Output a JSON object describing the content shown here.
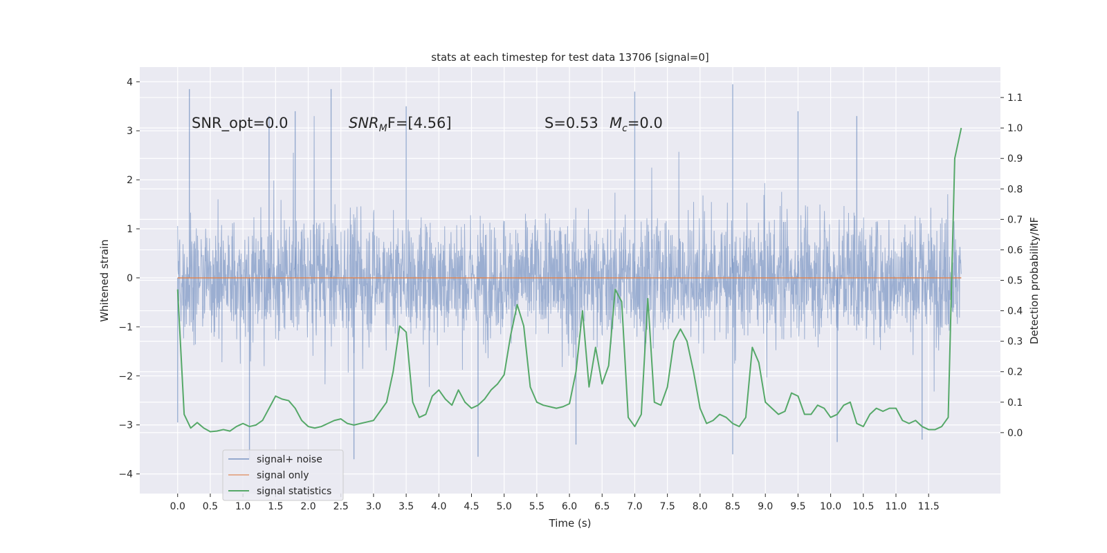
{
  "chart_data": {
    "type": "line",
    "title": "stats at each timestep for test data 13706 [signal=0]",
    "xlabel": "Time (s)",
    "ylabel": "Whitened strain",
    "ylabel_right": "Detection probability/MF",
    "xlim": [
      -0.58,
      12.6
    ],
    "ylim": [
      -4.4,
      4.3
    ],
    "ylim_right": [
      -0.2,
      1.2
    ],
    "x_ticks": [
      0.0,
      0.5,
      1.0,
      1.5,
      2.0,
      2.5,
      3.0,
      3.5,
      4.0,
      4.5,
      5.0,
      5.5,
      6.0,
      6.5,
      7.0,
      7.5,
      8.0,
      8.5,
      9.0,
      9.5,
      10.0,
      10.5,
      11.0,
      11.5
    ],
    "x_tick_labels": [
      "0.0",
      "0.5",
      "1.0",
      "1.5",
      "2.0",
      "2.5",
      "3.0",
      "3.5",
      "4.0",
      "4.5",
      "5.0",
      "5.5",
      "6.0",
      "6.5",
      "7.0",
      "7.5",
      "8.0",
      "8.5",
      "9.0",
      "9.5",
      "10.0",
      "10.5",
      "11.0",
      "11.5"
    ],
    "y_ticks": [
      -4,
      -3,
      -2,
      -1,
      0,
      1,
      2,
      3,
      4
    ],
    "y_tick_labels": [
      "−4",
      "−3",
      "−2",
      "−1",
      "0",
      "1",
      "2",
      "3",
      "4"
    ],
    "y_ticks_right": [
      0.0,
      0.1,
      0.2,
      0.3,
      0.4,
      0.5,
      0.6,
      0.7,
      0.8,
      0.9,
      1.0,
      1.1
    ],
    "y_tick_labels_right": [
      "0.0",
      "0.1",
      "0.2",
      "0.3",
      "0.4",
      "0.5",
      "0.6",
      "0.7",
      "0.8",
      "0.9",
      "1.0",
      "1.1"
    ],
    "grid": true,
    "legend_position": "lower-left",
    "colors": {
      "noise": "#4c72b0",
      "signal": "#dd8452",
      "stats": "#55a868",
      "panel": "#eaeaf2"
    },
    "annotations": [
      {
        "text": "SNR_opt=0.0",
        "x": 0.2,
        "y": 3.1
      },
      {
        "text": "SNR",
        "sub": "M",
        "suffix": "F=[4.56]",
        "italic_prefix": "SNR",
        "x": 2.6,
        "y": 3.1
      },
      {
        "text": "S=0.53",
        "x": 5.6,
        "y": 3.1
      },
      {
        "text": "M",
        "sub": "c",
        "suffix": "=0.0",
        "x": 6.6,
        "y": 3.1
      }
    ],
    "series": [
      {
        "name": "signal+ noise",
        "axis": "left",
        "style": "dense-noise",
        "x_range": [
          0.0,
          12.0
        ],
        "envelope_typical": [
          -1.8,
          1.8
        ],
        "peaks": [
          {
            "x": 0.18,
            "y": 3.85
          },
          {
            "x": 2.35,
            "y": 3.85
          },
          {
            "x": 3.5,
            "y": 3.5
          },
          {
            "x": 7.0,
            "y": 3.8
          },
          {
            "x": 8.5,
            "y": 3.95
          },
          {
            "x": 1.4,
            "y": 3.3
          },
          {
            "x": 1.8,
            "y": 3.4
          },
          {
            "x": 9.5,
            "y": 3.4
          },
          {
            "x": 10.4,
            "y": 3.3
          }
        ],
        "troughs": [
          {
            "x": 0.0,
            "y": -2.95
          },
          {
            "x": 1.1,
            "y": -3.7
          },
          {
            "x": 2.7,
            "y": -3.7
          },
          {
            "x": 4.6,
            "y": -3.65
          },
          {
            "x": 6.1,
            "y": -3.4
          },
          {
            "x": 8.5,
            "y": -3.6
          },
          {
            "x": 10.1,
            "y": -3.35
          },
          {
            "x": 11.4,
            "y": -3.3
          }
        ]
      },
      {
        "name": "signal only",
        "axis": "left",
        "x": [
          0.0,
          12.0
        ],
        "y": [
          0.0,
          0.0
        ]
      },
      {
        "name": "signal statistics",
        "axis": "right",
        "x": [
          0.0,
          0.1,
          0.2,
          0.3,
          0.4,
          0.5,
          0.6,
          0.7,
          0.8,
          0.9,
          1.0,
          1.1,
          1.2,
          1.3,
          1.4,
          1.5,
          1.6,
          1.7,
          1.8,
          1.9,
          2.0,
          2.1,
          2.2,
          2.3,
          2.4,
          2.5,
          2.6,
          2.7,
          2.8,
          2.9,
          3.0,
          3.1,
          3.2,
          3.3,
          3.4,
          3.5,
          3.6,
          3.7,
          3.8,
          3.9,
          4.0,
          4.1,
          4.2,
          4.3,
          4.4,
          4.5,
          4.6,
          4.7,
          4.8,
          4.9,
          5.0,
          5.1,
          5.2,
          5.3,
          5.4,
          5.5,
          5.6,
          5.7,
          5.8,
          5.9,
          6.0,
          6.1,
          6.2,
          6.3,
          6.4,
          6.5,
          6.6,
          6.7,
          6.8,
          6.9,
          7.0,
          7.1,
          7.2,
          7.3,
          7.4,
          7.5,
          7.6,
          7.7,
          7.8,
          7.9,
          8.0,
          8.1,
          8.2,
          8.3,
          8.4,
          8.5,
          8.6,
          8.7,
          8.8,
          8.9,
          9.0,
          9.1,
          9.2,
          9.3,
          9.4,
          9.5,
          9.6,
          9.7,
          9.8,
          9.9,
          10.0,
          10.1,
          10.2,
          10.3,
          10.4,
          10.5,
          10.6,
          10.7,
          10.8,
          10.9,
          11.0,
          11.1,
          11.2,
          11.3,
          11.4,
          11.5,
          11.6,
          11.7,
          11.8,
          11.9,
          12.0
        ],
        "y": [
          0.47,
          0.06,
          0.015,
          0.033,
          0.015,
          0.003,
          0.005,
          0.01,
          0.005,
          0.02,
          0.03,
          0.02,
          0.025,
          0.04,
          0.08,
          0.12,
          0.11,
          0.105,
          0.08,
          0.04,
          0.02,
          0.015,
          0.02,
          0.03,
          0.04,
          0.045,
          0.03,
          0.025,
          0.03,
          0.035,
          0.04,
          0.07,
          0.1,
          0.2,
          0.35,
          0.33,
          0.1,
          0.05,
          0.06,
          0.12,
          0.14,
          0.11,
          0.09,
          0.14,
          0.1,
          0.08,
          0.09,
          0.11,
          0.14,
          0.16,
          0.19,
          0.32,
          0.42,
          0.35,
          0.15,
          0.1,
          0.09,
          0.085,
          0.08,
          0.085,
          0.095,
          0.2,
          0.4,
          0.15,
          0.28,
          0.16,
          0.22,
          0.47,
          0.43,
          0.05,
          0.02,
          0.06,
          0.44,
          0.1,
          0.09,
          0.15,
          0.3,
          0.34,
          0.3,
          0.2,
          0.08,
          0.03,
          0.04,
          0.06,
          0.05,
          0.03,
          0.02,
          0.05,
          0.28,
          0.23,
          0.1,
          0.08,
          0.06,
          0.07,
          0.13,
          0.12,
          0.06,
          0.06,
          0.09,
          0.08,
          0.05,
          0.06,
          0.09,
          0.1,
          0.03,
          0.02,
          0.06,
          0.08,
          0.07,
          0.08,
          0.08,
          0.04,
          0.03,
          0.04,
          0.02,
          0.01,
          0.01,
          0.02,
          0.05,
          0.9,
          1.0
        ]
      }
    ]
  }
}
